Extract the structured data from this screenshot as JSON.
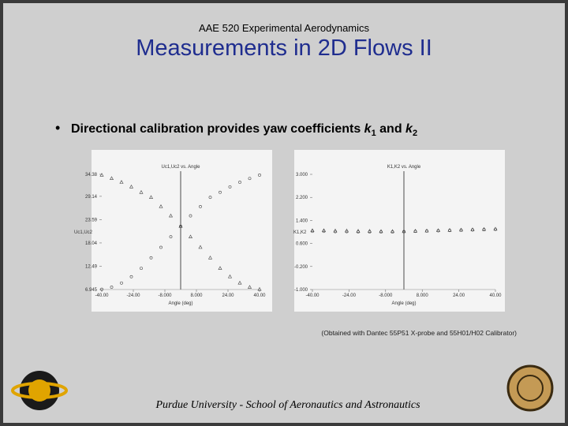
{
  "header": {
    "course": "AAE 520 Experimental Aerodynamics",
    "title": "Measurements in 2D Flows II"
  },
  "bullet": {
    "text": "Directional calibration provides yaw coefficients ",
    "k1": "k",
    "k1_sub": "1",
    "and": " and ",
    "k2": "k",
    "k2_sub": "2"
  },
  "caption": "(Obtained with Dantec 55P51 X-probe and 55H01/H02 Calibrator)",
  "footer": "Purdue University - School of Aeronautics and Astronautics",
  "chart_data": [
    {
      "type": "scatter",
      "title": "Uc1,Uc2 vs. Angle",
      "x_label": "Angle (deg)",
      "y_label": "Uc1,Uc2",
      "x": [
        -40,
        -35,
        -30,
        -25,
        -20,
        -15,
        -10,
        -5,
        0,
        5,
        10,
        15,
        20,
        25,
        30,
        35,
        40
      ],
      "series": [
        {
          "marker": "triangle",
          "color": "#444444",
          "values": [
            34.2,
            33.4,
            32.5,
            31.4,
            30.1,
            28.9,
            26.7,
            24.5,
            22,
            19.5,
            17,
            14.5,
            12,
            10,
            8.5,
            7.5,
            7
          ]
        },
        {
          "marker": "circle",
          "color": "#444444",
          "values": [
            7,
            7.5,
            8.5,
            10,
            12,
            14.5,
            17,
            19.5,
            22,
            24.5,
            26.7,
            28.9,
            30.1,
            31.4,
            32.5,
            33.4,
            34.2
          ]
        }
      ],
      "xlim": [
        -40,
        40
      ],
      "ylim": [
        6.945,
        34.38
      ],
      "xticks": [
        {
          "value": -40,
          "label": "-40.00"
        },
        {
          "value": -24,
          "label": "-24.00"
        },
        {
          "value": -8,
          "label": "-8.000"
        },
        {
          "value": 8,
          "label": "8.000"
        },
        {
          "value": 24,
          "label": "24.00"
        },
        {
          "value": 40,
          "label": "40.00"
        }
      ],
      "yticks": [
        34.38,
        29.14,
        23.59,
        18.04,
        12.49,
        6.945
      ]
    },
    {
      "type": "scatter",
      "title": "K1,K2 vs. Angle",
      "x_label": "Angle (deg)",
      "y_label": "K1,K2",
      "x": [
        -40,
        -35,
        -30,
        -25,
        -20,
        -15,
        -10,
        -5,
        0,
        5,
        10,
        15,
        20,
        25,
        30,
        35,
        40
      ],
      "series": [
        {
          "marker": "triangle",
          "color": "#444444",
          "values": [
            1.05,
            1.05,
            1.04,
            1.04,
            1.03,
            1.03,
            1.02,
            1.02,
            1.02,
            1.03,
            1.04,
            1.05,
            1.06,
            1.07,
            1.08,
            1.09,
            1.1
          ]
        },
        {
          "marker": "circle",
          "color": "#444444",
          "values": [
            1.02,
            1.02,
            1.01,
            1.01,
            1.0,
            1.0,
            1.0,
            1.0,
            1.01,
            1.02,
            1.03,
            1.04,
            1.05,
            1.06,
            1.07,
            1.08,
            1.09
          ]
        }
      ],
      "xlim": [
        -40,
        40
      ],
      "ylim": [
        -1,
        3
      ],
      "xticks": [
        {
          "value": -40,
          "label": "-40.00"
        },
        {
          "value": -24,
          "label": "-24.00"
        },
        {
          "value": -8,
          "label": "-8.000"
        },
        {
          "value": 8,
          "label": "8.000"
        },
        {
          "value": 24,
          "label": "24.00"
        },
        {
          "value": 40,
          "label": "40.00"
        }
      ],
      "yticks": [
        {
          "value": 3,
          "label": "3.000"
        },
        {
          "value": 2.2,
          "label": "2.200"
        },
        {
          "value": 1.4,
          "label": "1.400"
        },
        {
          "value": 0.6,
          "label": "0.600"
        },
        {
          "value": -0.2,
          "label": "-0.200"
        },
        {
          "value": -1,
          "label": "-1.000"
        }
      ]
    }
  ]
}
